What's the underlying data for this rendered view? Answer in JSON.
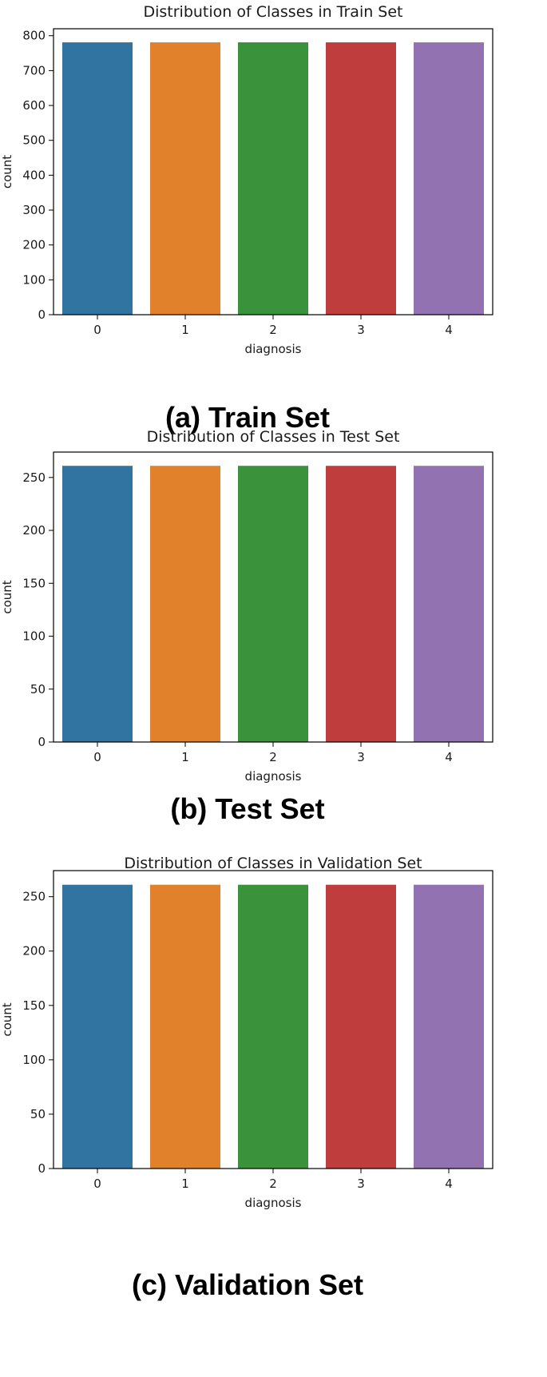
{
  "chart_data": [
    {
      "type": "bar",
      "title": "Distribution of Classes in Train Set",
      "caption": "(a) Train Set",
      "xlabel": "diagnosis",
      "ylabel": "count",
      "categories": [
        "0",
        "1",
        "2",
        "3",
        "4"
      ],
      "values": [
        781,
        781,
        781,
        781,
        781
      ],
      "ylim": [
        0,
        820
      ],
      "yticks": [
        0,
        100,
        200,
        300,
        400,
        500,
        600,
        700,
        800
      ],
      "colors": [
        "#3274a1",
        "#e1812c",
        "#3a923a",
        "#c03d3e",
        "#9372b2"
      ],
      "grid": false
    },
    {
      "type": "bar",
      "title": "Distribution of Classes in Test Set",
      "caption": "(b) Test Set",
      "xlabel": "diagnosis",
      "ylabel": "count",
      "categories": [
        "0",
        "1",
        "2",
        "3",
        "4"
      ],
      "values": [
        261,
        261,
        261,
        261,
        261
      ],
      "ylim": [
        0,
        274
      ],
      "yticks": [
        0,
        50,
        100,
        150,
        200,
        250
      ],
      "colors": [
        "#3274a1",
        "#e1812c",
        "#3a923a",
        "#c03d3e",
        "#9372b2"
      ],
      "grid": false
    },
    {
      "type": "bar",
      "title": "Distribution of Classes in Validation Set",
      "caption": "(c) Validation Set",
      "xlabel": "diagnosis",
      "ylabel": "count",
      "categories": [
        "0",
        "1",
        "2",
        "3",
        "4"
      ],
      "values": [
        261,
        261,
        261,
        261,
        261
      ],
      "ylim": [
        0,
        274
      ],
      "yticks": [
        0,
        50,
        100,
        150,
        200,
        250
      ],
      "colors": [
        "#3274a1",
        "#e1812c",
        "#3a923a",
        "#c03d3e",
        "#9372b2"
      ],
      "grid": false
    }
  ]
}
